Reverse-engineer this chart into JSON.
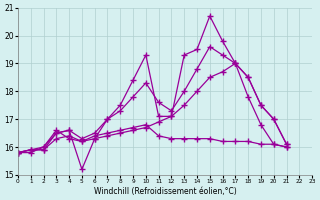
{
  "xlabel": "Windchill (Refroidissement éolien,°C)",
  "bg_color": "#d6f0f0",
  "line_color": "#990099",
  "grid_color": "#b0d0d0",
  "xlim": [
    0,
    23
  ],
  "ylim": [
    15,
    21
  ],
  "yticks": [
    15,
    16,
    17,
    18,
    19,
    20,
    21
  ],
  "xticks": [
    0,
    1,
    2,
    3,
    4,
    5,
    6,
    7,
    8,
    9,
    10,
    11,
    12,
    13,
    14,
    15,
    16,
    17,
    18,
    19,
    20,
    21,
    22,
    23
  ],
  "series": [
    [
      15.8,
      15.9,
      15.9,
      16.5,
      16.6,
      15.2,
      16.3,
      17.0,
      17.5,
      18.4,
      19.3,
      17.1,
      17.1,
      19.3,
      19.5,
      20.7,
      19.8,
      19.0,
      17.8,
      16.8,
      16.1,
      16.0
    ],
    [
      15.8,
      15.9,
      16.0,
      16.6,
      16.3,
      16.2,
      16.3,
      16.4,
      16.5,
      16.6,
      16.7,
      16.9,
      17.1,
      17.5,
      18.0,
      18.5,
      18.7,
      19.0,
      18.5,
      17.5,
      17.0,
      16.1
    ],
    [
      15.8,
      15.9,
      15.9,
      16.3,
      16.4,
      16.2,
      16.4,
      16.5,
      16.6,
      16.7,
      16.8,
      16.4,
      16.3,
      16.3,
      16.3,
      16.3,
      16.2,
      16.2,
      16.2,
      16.1,
      16.1,
      16.0
    ],
    [
      15.8,
      15.8,
      16.0,
      16.5,
      16.6,
      16.3,
      16.5,
      17.0,
      17.3,
      17.8,
      18.3,
      17.6,
      17.3,
      18.0,
      18.8,
      19.6,
      19.3,
      19.0,
      18.5,
      17.5,
      17.0,
      16.1
    ]
  ],
  "series_x_start": 0
}
